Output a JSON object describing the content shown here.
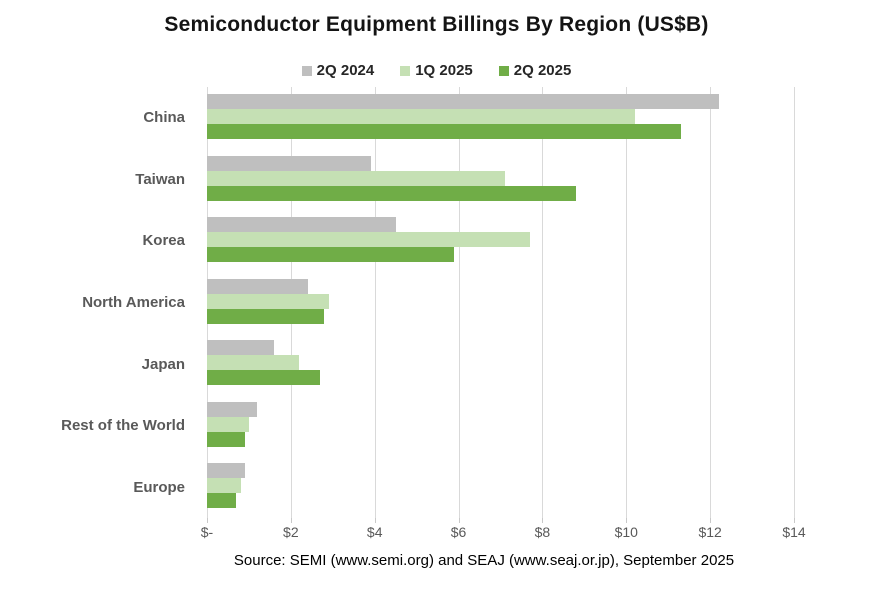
{
  "title": "Semiconductor Equipment Billings By Region (US$B)",
  "source_note": "Source: SEMI (www.semi.org) and SEAJ (www.seaj.or.jp), September 2025",
  "colors": {
    "gridline": "#d9d9d9",
    "axis_text": "#595959",
    "category_text": "#595959",
    "title_text": "#141414",
    "series_gray": "#bfbfbf",
    "series_light_green": "#c5e0b4",
    "series_green": "#70ad47"
  },
  "chart_data": {
    "type": "bar",
    "orientation": "horizontal",
    "title": "Semiconductor Equipment Billings By Region (US$B)",
    "unit": "US$B",
    "categories": [
      "China",
      "Taiwan",
      "Korea",
      "North America",
      "Japan",
      "Rest of the World",
      "Europe"
    ],
    "series": [
      {
        "name": "2Q 2024",
        "color": "#bfbfbf",
        "values": [
          12.2,
          3.9,
          4.5,
          2.4,
          1.6,
          1.2,
          0.9
        ]
      },
      {
        "name": "1Q 2025",
        "color": "#c5e0b4",
        "values": [
          10.2,
          7.1,
          7.7,
          2.9,
          2.2,
          1.0,
          0.8
        ]
      },
      {
        "name": "2Q 2025",
        "color": "#70ad47",
        "values": [
          11.3,
          8.8,
          5.9,
          2.8,
          2.7,
          0.9,
          0.7
        ]
      }
    ],
    "xlim": [
      0,
      14
    ],
    "x_ticks": [
      {
        "value": 0,
        "label": "$-"
      },
      {
        "value": 2,
        "label": "$2"
      },
      {
        "value": 4,
        "label": "$4"
      },
      {
        "value": 6,
        "label": "$6"
      },
      {
        "value": 8,
        "label": "$8"
      },
      {
        "value": 10,
        "label": "$10"
      },
      {
        "value": 12,
        "label": "$12"
      },
      {
        "value": 14,
        "label": "$14"
      }
    ],
    "grid": "vertical",
    "legend_position": "top",
    "legend": [
      "2Q 2024",
      "1Q 2025",
      "2Q 2025"
    ]
  }
}
